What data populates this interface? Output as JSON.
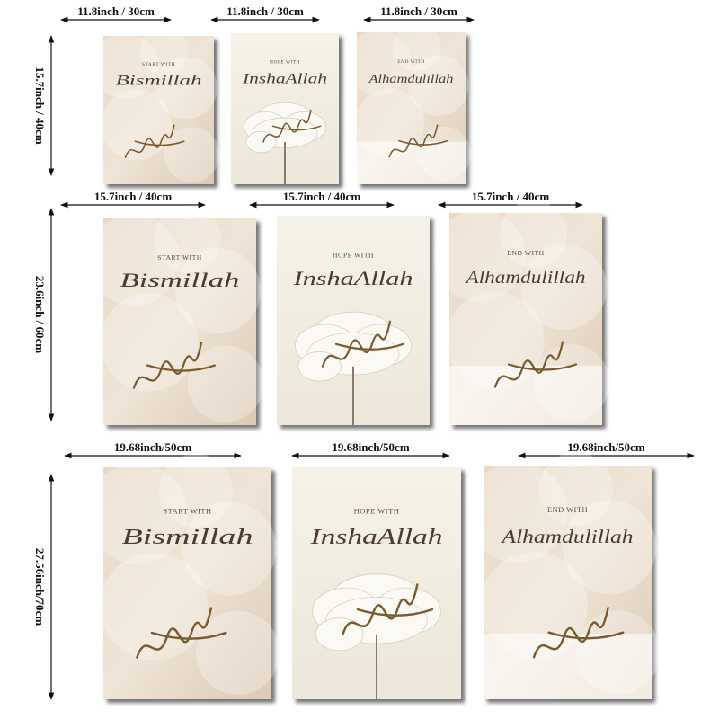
{
  "rows": [
    {
      "height_label": "15.7inch / 40cm",
      "posters": [
        {
          "width_label": "11.8inch / 30cm",
          "kicker": "START WITH",
          "word": "Bismillah"
        },
        {
          "width_label": "11.8inch / 30cm",
          "kicker": "HOPE WITH",
          "word": "InshaAllah"
        },
        {
          "width_label": "11.8inch / 30cm",
          "kicker": "END WITH",
          "word": "Alhamdulillah"
        }
      ]
    },
    {
      "height_label": "23.6inch / 60cm",
      "posters": [
        {
          "width_label": "15.7inch / 40cm",
          "kicker": "START WITH",
          "word": "Bismillah"
        },
        {
          "width_label": "15.7inch / 40cm",
          "kicker": "HOPE WITH",
          "word": "InshaAllah"
        },
        {
          "width_label": "15.7inch / 40cm",
          "kicker": "END WITH",
          "word": "Alhamdulillah"
        }
      ]
    },
    {
      "height_label": "27.56inch/70cm",
      "posters": [
        {
          "width_label": "19.68inch/50cm",
          "kicker": "START WITH",
          "word": "Bismillah"
        },
        {
          "width_label": "19.68inch/50cm",
          "kicker": "HOPE WITH",
          "word": "InshaAllah"
        },
        {
          "width_label": "19.68inch/50cm",
          "kicker": "END WITH",
          "word": "Alhamdulillah"
        }
      ]
    }
  ]
}
